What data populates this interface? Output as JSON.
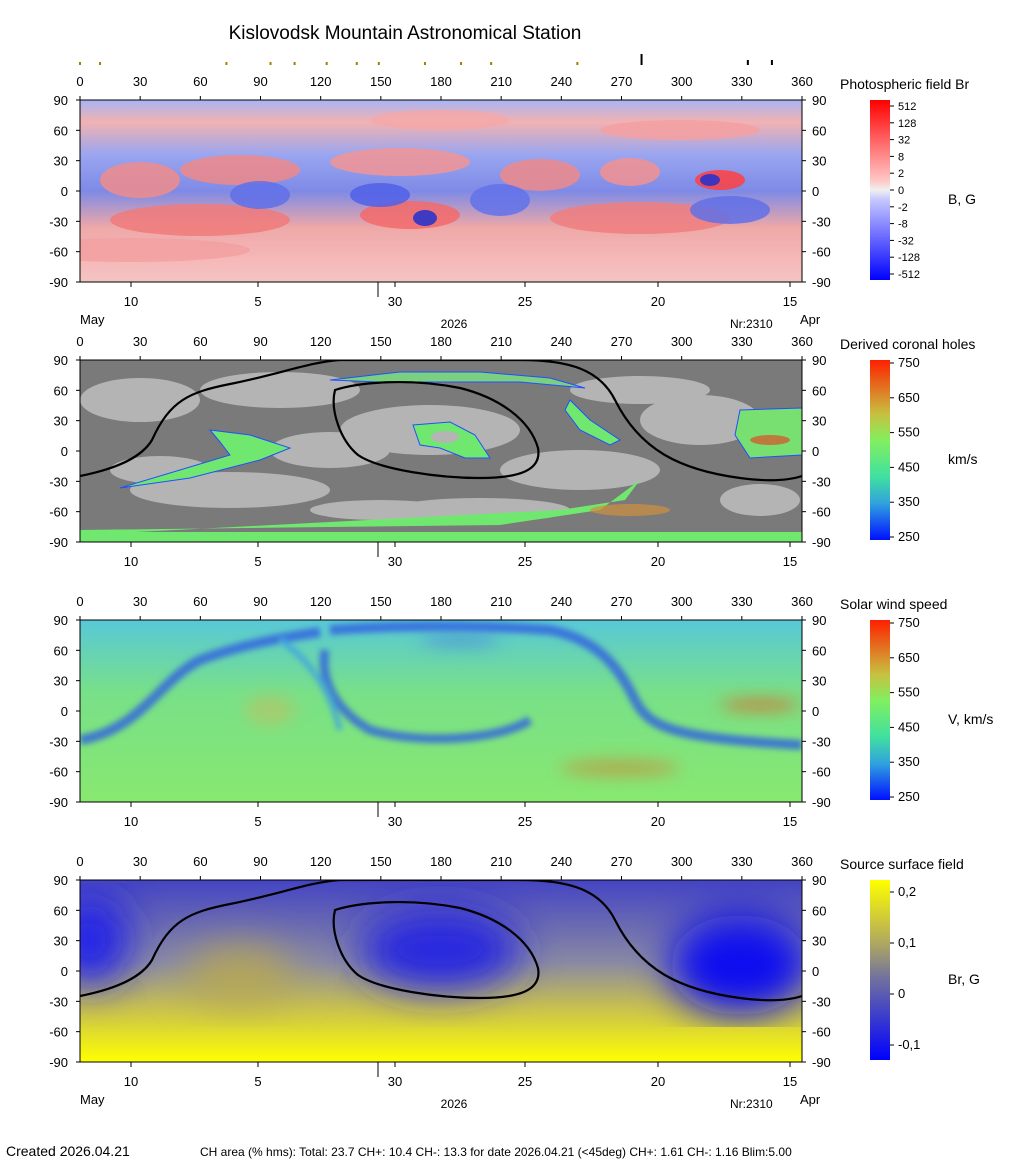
{
  "title": "Kislovodsk Mountain Astronomical Station",
  "lon_ticks": [
    0,
    30,
    60,
    90,
    120,
    150,
    180,
    210,
    240,
    270,
    300,
    330,
    360
  ],
  "lat_ticks": [
    90,
    60,
    30,
    0,
    -30,
    -60,
    -90
  ],
  "date_ticks": [
    "10",
    "5",
    "30",
    "25",
    "20",
    "15"
  ],
  "month_left": "May",
  "month_right": "Apr",
  "year": "2026",
  "rotation": "Nr:2310",
  "footer": {
    "created": "Created  2026.04.21",
    "stats": "CH area (% hms): Total: 23.7 CH+: 10.4   CH-: 13.3 for date 2026.04.21 (<45deg) CH+: 1.61    CH-: 1.16 Blim:5.00"
  },
  "chart_data": [
    {
      "type": "heatmap",
      "title": "Photospheric field Br",
      "colorbar_unit": "B, G",
      "colorbar_labels": [
        "512",
        "128",
        "32",
        "8",
        "2",
        "0",
        "-2",
        "-8",
        "-32",
        "-128",
        "-512"
      ],
      "xlim": [
        0,
        360
      ],
      "ylim": [
        -90,
        90
      ],
      "colors": {
        "positive": "#ff1a1a",
        "negative": "#1a1aff",
        "zero": "#e8e8e8"
      }
    },
    {
      "type": "heatmap",
      "title": "Derived coronal holes",
      "colorbar_unit": "km/s",
      "colorbar_labels": [
        "750",
        "650",
        "550",
        "450",
        "350",
        "250"
      ],
      "xlim": [
        0,
        360
      ],
      "ylim": [
        -90,
        90
      ],
      "neutral_line": true
    },
    {
      "type": "heatmap",
      "title": "Solar wind speed",
      "colorbar_unit": "V, km/s",
      "colorbar_labels": [
        "750",
        "650",
        "550",
        "450",
        "350",
        "250"
      ],
      "xlim": [
        0,
        360
      ],
      "ylim": [
        -90,
        90
      ]
    },
    {
      "type": "heatmap",
      "title": "Source surface field",
      "colorbar_unit": "Br, G",
      "colorbar_labels": [
        "0,2",
        "0,1",
        "0",
        "-0,1"
      ],
      "xlim": [
        0,
        360
      ],
      "ylim": [
        -90,
        90
      ],
      "neutral_line": true
    }
  ]
}
